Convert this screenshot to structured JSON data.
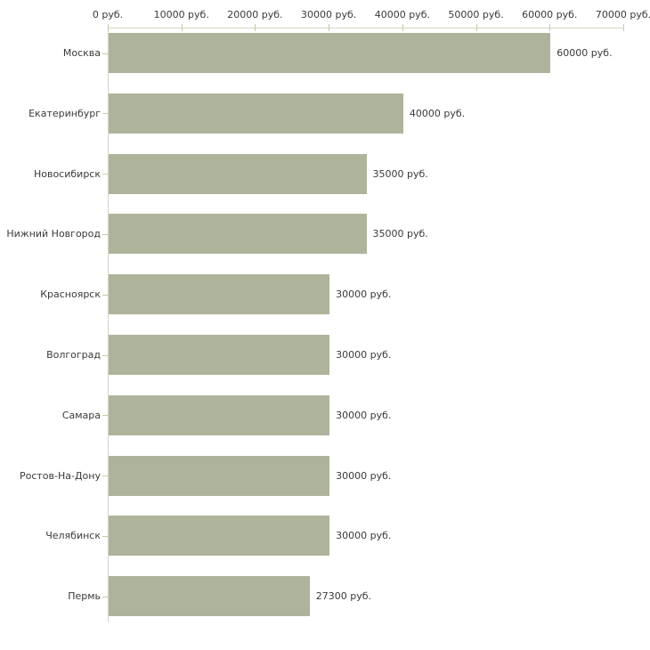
{
  "chart_data": {
    "type": "bar",
    "orientation": "horizontal",
    "title": "",
    "categories": [
      "Москва",
      "Екатеринбург",
      "Новосибирск",
      "Нижний Новгород",
      "Красноярск",
      "Волгоград",
      "Самара",
      "Ростов-На-Дону",
      "Челябинск",
      "Пермь"
    ],
    "values": [
      60000,
      40000,
      35000,
      35000,
      30000,
      30000,
      30000,
      30000,
      30000,
      27300
    ],
    "value_labels": [
      "60000 руб.",
      "40000 руб.",
      "35000 руб.",
      "35000 руб.",
      "30000 руб.",
      "30000 руб.",
      "30000 руб.",
      "30000 руб.",
      "30000 руб.",
      "27300 руб."
    ],
    "unit": "руб.",
    "x_axis": {
      "position": "top",
      "min": 0,
      "max": 70000,
      "ticks": [
        0,
        10000,
        20000,
        30000,
        40000,
        50000,
        60000,
        70000
      ],
      "tick_labels": [
        "0 руб.",
        "10000 руб.",
        "20000 руб.",
        "30000 руб.",
        "40000 руб.",
        "50000 руб.",
        "60000 руб.",
        "70000 руб."
      ]
    },
    "grid": false,
    "legend": false,
    "colors": {
      "bar": "#aeb49b",
      "axis_line": "#d4d4c9",
      "tick": "#c8c8a2",
      "text": "#3a3a3a",
      "background": "#ffffff"
    }
  }
}
